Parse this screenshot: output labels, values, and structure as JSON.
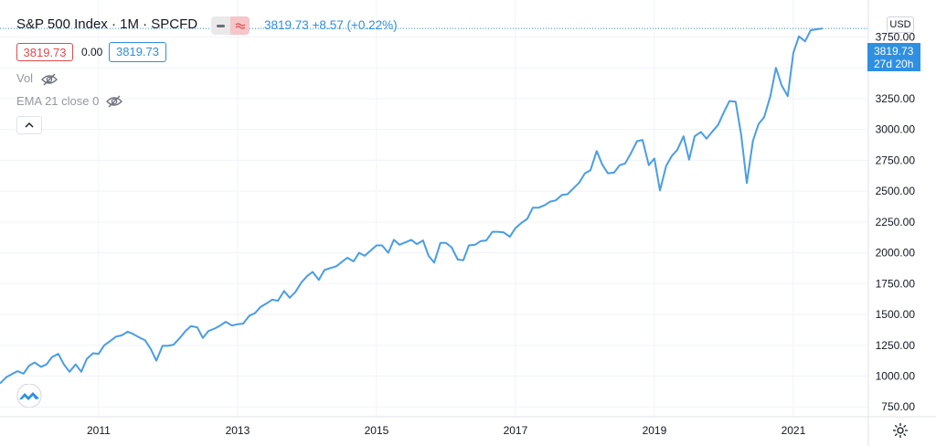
{
  "header": {
    "title": "S&P 500 Index · 1M · SPCFD",
    "price_change": "3819.73  +8.57 (+0.22%)"
  },
  "legend": {
    "sell_value": "3819.73",
    "spread_value": "0.00",
    "buy_value": "3819.73",
    "volume_label": "Vol",
    "ema_label": "EMA 21 close 0"
  },
  "price_scale": {
    "currency": "USD",
    "last_price": "3819.73",
    "countdown": "27d 20h"
  },
  "colors": {
    "line": "#4a9de3",
    "accent": "#2f8fe0",
    "negative": "#e04b4b",
    "grid": "#f0f3fa"
  },
  "chart_data": {
    "type": "line",
    "title": "S&P 500 Index",
    "ylim": [
      670,
      4050
    ],
    "xlim": [
      2009.58,
      2022.08
    ],
    "y_ticks": [
      750,
      1000,
      1250,
      1500,
      1750,
      2000,
      2250,
      2500,
      2750,
      3000,
      3250,
      3500,
      3750
    ],
    "y_tick_labels": [
      "750.00",
      "1000.00",
      "1250.00",
      "1500.00",
      "1750.00",
      "2000.00",
      "2250.00",
      "2500.00",
      "2750.00",
      "3000.00",
      "3250.00",
      "3500.00",
      "3750.00"
    ],
    "x_ticks": [
      2011,
      2013,
      2015,
      2017,
      2019,
      2021
    ],
    "x_tick_labels": [
      "2011",
      "2013",
      "2015",
      "2017",
      "2019",
      "2021"
    ],
    "series": [
      {
        "values": [
          [
            2009.58,
            940
          ],
          [
            2009.67,
            990
          ],
          [
            2009.83,
            1040
          ],
          [
            2009.92,
            1020
          ],
          [
            2010.0,
            1085
          ],
          [
            2010.08,
            1110
          ],
          [
            2010.17,
            1075
          ],
          [
            2010.25,
            1095
          ],
          [
            2010.33,
            1155
          ],
          [
            2010.42,
            1180
          ],
          [
            2010.5,
            1095
          ],
          [
            2010.58,
            1035
          ],
          [
            2010.67,
            1095
          ],
          [
            2010.75,
            1035
          ],
          [
            2010.83,
            1140
          ],
          [
            2010.92,
            1185
          ],
          [
            2011.0,
            1180
          ],
          [
            2011.08,
            1250
          ],
          [
            2011.17,
            1285
          ],
          [
            2011.25,
            1320
          ],
          [
            2011.33,
            1330
          ],
          [
            2011.42,
            1360
          ],
          [
            2011.5,
            1340
          ],
          [
            2011.58,
            1315
          ],
          [
            2011.67,
            1290
          ],
          [
            2011.75,
            1220
          ],
          [
            2011.83,
            1125
          ],
          [
            2011.92,
            1245
          ],
          [
            2012.0,
            1245
          ],
          [
            2012.08,
            1255
          ],
          [
            2012.17,
            1310
          ],
          [
            2012.25,
            1365
          ],
          [
            2012.33,
            1405
          ],
          [
            2012.42,
            1395
          ],
          [
            2012.5,
            1310
          ],
          [
            2012.58,
            1365
          ],
          [
            2012.67,
            1385
          ],
          [
            2012.75,
            1410
          ],
          [
            2012.83,
            1440
          ],
          [
            2012.92,
            1410
          ],
          [
            2013.0,
            1420
          ],
          [
            2013.08,
            1425
          ],
          [
            2013.17,
            1490
          ],
          [
            2013.25,
            1510
          ],
          [
            2013.33,
            1560
          ],
          [
            2013.42,
            1590
          ],
          [
            2013.5,
            1620
          ],
          [
            2013.58,
            1610
          ],
          [
            2013.67,
            1690
          ],
          [
            2013.75,
            1635
          ],
          [
            2013.83,
            1680
          ],
          [
            2013.92,
            1760
          ],
          [
            2014.0,
            1810
          ],
          [
            2014.08,
            1845
          ],
          [
            2014.17,
            1780
          ],
          [
            2014.25,
            1860
          ],
          [
            2014.33,
            1875
          ],
          [
            2014.42,
            1890
          ],
          [
            2014.5,
            1925
          ],
          [
            2014.58,
            1960
          ],
          [
            2014.67,
            1930
          ],
          [
            2014.75,
            2000
          ],
          [
            2014.83,
            1975
          ],
          [
            2014.92,
            2020
          ],
          [
            2015.0,
            2060
          ],
          [
            2015.08,
            2060
          ],
          [
            2015.17,
            2000
          ],
          [
            2015.25,
            2105
          ],
          [
            2015.33,
            2065
          ],
          [
            2015.42,
            2085
          ],
          [
            2015.5,
            2105
          ],
          [
            2015.58,
            2070
          ],
          [
            2015.67,
            2100
          ],
          [
            2015.75,
            1975
          ],
          [
            2015.83,
            1920
          ],
          [
            2015.92,
            2080
          ],
          [
            2016.0,
            2080
          ],
          [
            2016.08,
            2045
          ],
          [
            2016.17,
            1945
          ],
          [
            2016.25,
            1940
          ],
          [
            2016.33,
            2060
          ],
          [
            2016.42,
            2065
          ],
          [
            2016.5,
            2095
          ],
          [
            2016.58,
            2100
          ],
          [
            2016.67,
            2170
          ],
          [
            2016.75,
            2170
          ],
          [
            2016.83,
            2165
          ],
          [
            2016.92,
            2130
          ],
          [
            2017.0,
            2200
          ],
          [
            2017.08,
            2240
          ],
          [
            2017.17,
            2275
          ],
          [
            2017.25,
            2365
          ],
          [
            2017.33,
            2365
          ],
          [
            2017.42,
            2385
          ],
          [
            2017.5,
            2415
          ],
          [
            2017.58,
            2425
          ],
          [
            2017.67,
            2470
          ],
          [
            2017.75,
            2475
          ],
          [
            2017.83,
            2520
          ],
          [
            2017.92,
            2570
          ],
          [
            2018.0,
            2645
          ],
          [
            2018.08,
            2670
          ],
          [
            2018.17,
            2825
          ],
          [
            2018.25,
            2715
          ],
          [
            2018.33,
            2645
          ],
          [
            2018.42,
            2650
          ],
          [
            2018.5,
            2710
          ],
          [
            2018.58,
            2725
          ],
          [
            2018.67,
            2815
          ],
          [
            2018.75,
            2905
          ],
          [
            2018.83,
            2915
          ],
          [
            2018.92,
            2710
          ],
          [
            2019.0,
            2765
          ],
          [
            2019.08,
            2505
          ],
          [
            2019.17,
            2705
          ],
          [
            2019.25,
            2785
          ],
          [
            2019.33,
            2835
          ],
          [
            2019.42,
            2945
          ],
          [
            2019.5,
            2755
          ],
          [
            2019.58,
            2945
          ],
          [
            2019.67,
            2980
          ],
          [
            2019.75,
            2925
          ],
          [
            2019.83,
            2980
          ],
          [
            2019.92,
            3040
          ],
          [
            2020.0,
            3140
          ],
          [
            2020.08,
            3230
          ],
          [
            2020.17,
            3225
          ],
          [
            2020.25,
            2955
          ],
          [
            2020.33,
            2565
          ],
          [
            2020.42,
            2910
          ],
          [
            2020.5,
            3045
          ],
          [
            2020.58,
            3100
          ],
          [
            2020.67,
            3270
          ],
          [
            2020.75,
            3500
          ],
          [
            2020.83,
            3360
          ],
          [
            2020.92,
            3270
          ],
          [
            2021.0,
            3620
          ],
          [
            2021.08,
            3755
          ],
          [
            2021.17,
            3715
          ],
          [
            2021.25,
            3805
          ],
          [
            2021.33,
            3812
          ],
          [
            2021.42,
            3819.73
          ]
        ]
      }
    ],
    "last_value": 3819.73
  }
}
